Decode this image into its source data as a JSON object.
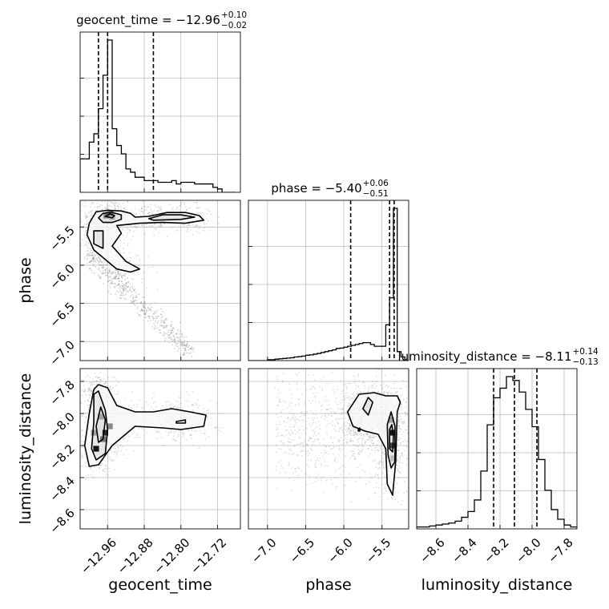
{
  "chart_data": {
    "type": "corner",
    "parameters": [
      {
        "name": "geocent_time",
        "range": [
          -13.02,
          -12.67
        ],
        "ticks": [
          -12.96,
          -12.88,
          -12.8,
          -12.72
        ],
        "tick_labels": [
          "−12.96",
          "−12.88",
          "−12.80",
          "−12.72"
        ]
      },
      {
        "name": "phase",
        "range": [
          -7.25,
          -5.15
        ],
        "ticks": [
          -7.0,
          -6.5,
          -6.0,
          -5.5
        ],
        "tick_labels": [
          "−7.0",
          "−6.5",
          "−6.0",
          "−5.5"
        ]
      },
      {
        "name": "luminosity_distance",
        "range": [
          -8.72,
          -7.72
        ],
        "ticks": [
          -8.6,
          -8.4,
          -8.2,
          -8.0,
          -7.8
        ],
        "tick_labels": [
          "−8.6",
          "−8.4",
          "−8.2",
          "−8.0",
          "−7.8"
        ]
      }
    ],
    "titles": [
      {
        "param": "geocent_time",
        "prefix": "geocent_time = −12.96",
        "plus": "+0.10",
        "minus": "−0.02"
      },
      {
        "param": "phase",
        "prefix": "phase = −5.40",
        "plus": "+0.06",
        "minus": "−0.51"
      },
      {
        "param": "luminosity_distance",
        "prefix": "luminosity_distance = −8.11",
        "plus": "+0.14",
        "minus": "−0.13"
      }
    ],
    "marginals": [
      {
        "param": "geocent_time",
        "quantiles": [
          -12.98,
          -12.96,
          -12.86
        ],
        "bins": [
          -13.02,
          -13.01,
          -13.0,
          -12.99,
          -12.98,
          -12.97,
          -12.96,
          -12.95,
          -12.94,
          -12.93,
          -12.92,
          -12.91,
          -12.9,
          -12.89,
          -12.88,
          -12.87,
          -12.86,
          -12.85,
          -12.84,
          -12.83,
          -12.82,
          -12.81,
          -12.8,
          -12.79,
          -12.78,
          -12.77,
          -12.76,
          -12.75,
          -12.74,
          -12.73,
          -12.72,
          -12.71,
          -12.7,
          -12.69
        ],
        "counts": [
          0.2,
          0.2,
          0.3,
          0.35,
          0.5,
          0.7,
          0.91,
          0.38,
          0.28,
          0.23,
          0.14,
          0.12,
          0.09,
          0.09,
          0.07,
          0.07,
          0.07,
          0.06,
          0.06,
          0.06,
          0.07,
          0.05,
          0.06,
          0.06,
          0.06,
          0.05,
          0.05,
          0.05,
          0.05,
          0.03,
          0.02,
          0.0,
          0.0,
          0.0
        ]
      },
      {
        "param": "phase",
        "quantiles": [
          -5.91,
          -5.4,
          -5.34
        ],
        "bins": [
          -7.25,
          -7.2,
          -7.15,
          -7.1,
          -7.05,
          -7.0,
          -6.95,
          -6.9,
          -6.85,
          -6.8,
          -6.75,
          -6.7,
          -6.65,
          -6.6,
          -6.55,
          -6.5,
          -6.45,
          -6.4,
          -6.35,
          -6.3,
          -6.25,
          -6.2,
          -6.15,
          -6.1,
          -6.05,
          -6.0,
          -5.95,
          -5.9,
          -5.85,
          -5.8,
          -5.75,
          -5.7,
          -5.65,
          -5.6,
          -5.55,
          -5.5,
          -5.45,
          -5.4,
          -5.35,
          -5.3,
          -5.25,
          -5.2
        ],
        "counts": [
          0,
          0,
          0,
          0,
          0,
          0.005,
          0.005,
          0.008,
          0.01,
          0.012,
          0.014,
          0.016,
          0.02,
          0.022,
          0.025,
          0.03,
          0.032,
          0.036,
          0.04,
          0.045,
          0.05,
          0.055,
          0.06,
          0.068,
          0.07,
          0.075,
          0.08,
          0.085,
          0.09,
          0.095,
          0.1,
          0.1,
          0.09,
          0.08,
          0.08,
          0.08,
          0.2,
          0.35,
          0.85,
          0.05,
          0.02,
          0.0
        ]
      },
      {
        "param": "luminosity_distance",
        "quantiles": [
          -8.24,
          -8.11,
          -7.97
        ],
        "bins": [
          -8.72,
          -8.68,
          -8.64,
          -8.6,
          -8.56,
          -8.52,
          -8.48,
          -8.44,
          -8.4,
          -8.36,
          -8.32,
          -8.28,
          -8.24,
          -8.2,
          -8.16,
          -8.12,
          -8.08,
          -8.04,
          -8.0,
          -7.96,
          -7.92,
          -7.88,
          -7.84,
          -7.8,
          -7.76,
          -7.72
        ],
        "counts": [
          0.01,
          0.01,
          0.015,
          0.02,
          0.025,
          0.03,
          0.04,
          0.06,
          0.09,
          0.15,
          0.3,
          0.54,
          0.68,
          0.73,
          0.79,
          0.77,
          0.71,
          0.62,
          0.53,
          0.36,
          0.2,
          0.1,
          0.05,
          0.02,
          0.01,
          0.0
        ]
      }
    ],
    "scatter_2d": [
      {
        "x": "geocent_time",
        "y": "phase",
        "contours": [
          [
            [
              -12.99,
              -5.35
            ],
            [
              -12.985,
              -5.3
            ],
            [
              -12.96,
              -5.28
            ],
            [
              -12.93,
              -5.29
            ],
            [
              -12.91,
              -5.32
            ],
            [
              -12.9,
              -5.37
            ],
            [
              -12.87,
              -5.36
            ],
            [
              -12.83,
              -5.31
            ],
            [
              -12.79,
              -5.31
            ],
            [
              -12.76,
              -5.35
            ],
            [
              -12.75,
              -5.41
            ],
            [
              -12.79,
              -5.45
            ],
            [
              -12.84,
              -5.44
            ],
            [
              -12.89,
              -5.45
            ],
            [
              -12.94,
              -5.48
            ],
            [
              -12.93,
              -5.58
            ],
            [
              -12.95,
              -5.75
            ],
            [
              -12.92,
              -5.95
            ],
            [
              -12.89,
              -6.05
            ],
            [
              -12.91,
              -6.09
            ],
            [
              -12.94,
              -6.05
            ],
            [
              -12.96,
              -5.95
            ],
            [
              -12.99,
              -5.8
            ],
            [
              -13.005,
              -5.6
            ],
            [
              -13.0,
              -5.45
            ],
            [
              -12.99,
              -5.35
            ]
          ],
          [
            [
              -12.98,
              -5.38
            ],
            [
              -12.97,
              -5.32
            ],
            [
              -12.95,
              -5.31
            ],
            [
              -12.93,
              -5.34
            ],
            [
              -12.93,
              -5.4
            ],
            [
              -12.95,
              -5.44
            ],
            [
              -12.97,
              -5.44
            ],
            [
              -12.98,
              -5.38
            ]
          ],
          [
            [
              -12.965,
              -5.36
            ],
            [
              -12.955,
              -5.33
            ],
            [
              -12.945,
              -5.35
            ],
            [
              -12.95,
              -5.38
            ],
            [
              -12.965,
              -5.36
            ]
          ],
          [
            [
              -12.87,
              -5.39
            ],
            [
              -12.84,
              -5.34
            ],
            [
              -12.8,
              -5.34
            ],
            [
              -12.77,
              -5.37
            ],
            [
              -12.8,
              -5.4
            ],
            [
              -12.86,
              -5.41
            ],
            [
              -12.87,
              -5.39
            ]
          ],
          [
            [
              -12.99,
              -5.55
            ],
            [
              -12.97,
              -5.55
            ],
            [
              -12.97,
              -5.78
            ],
            [
              -12.99,
              -5.72
            ],
            [
              -12.99,
              -5.55
            ]
          ]
        ],
        "hist_bins": [
          {
            "x": -12.958,
            "y": -5.34,
            "level": 1.0
          },
          {
            "x": -12.953,
            "y": -5.32,
            "level": 0.6
          },
          {
            "x": -12.963,
            "y": -5.35,
            "level": 0.5
          },
          {
            "x": -12.95,
            "y": -5.37,
            "level": 0.35
          }
        ]
      },
      {
        "x": "geocent_time",
        "y": "luminosity_distance",
        "contours": [
          [
            [
              -12.99,
              -7.85
            ],
            [
              -12.98,
              -7.82
            ],
            [
              -12.96,
              -7.84
            ],
            [
              -12.94,
              -7.95
            ],
            [
              -12.9,
              -7.99
            ],
            [
              -12.86,
              -7.99
            ],
            [
              -12.82,
              -7.97
            ],
            [
              -12.78,
              -7.99
            ],
            [
              -12.745,
              -8.01
            ],
            [
              -12.75,
              -8.08
            ],
            [
              -12.8,
              -8.1
            ],
            [
              -12.84,
              -8.09
            ],
            [
              -12.9,
              -8.08
            ],
            [
              -12.95,
              -8.2
            ],
            [
              -12.98,
              -8.32
            ],
            [
              -13.0,
              -8.33
            ],
            [
              -13.01,
              -8.2
            ],
            [
              -13.0,
              -8.0
            ],
            [
              -12.99,
              -7.85
            ]
          ],
          [
            [
              -12.99,
              -7.88
            ],
            [
              -12.98,
              -7.86
            ],
            [
              -12.965,
              -7.98
            ],
            [
              -12.96,
              -8.1
            ],
            [
              -12.965,
              -8.25
            ],
            [
              -12.985,
              -8.29
            ],
            [
              -12.995,
              -8.22
            ],
            [
              -12.99,
              -8.05
            ],
            [
              -12.99,
              -7.88
            ]
          ],
          [
            [
              -12.975,
              -7.96
            ],
            [
              -12.965,
              -8.04
            ],
            [
              -12.97,
              -8.16
            ],
            [
              -12.98,
              -8.18
            ],
            [
              -12.985,
              -8.08
            ],
            [
              -12.975,
              -7.96
            ]
          ],
          [
            [
              -12.81,
              -8.05
            ],
            [
              -12.79,
              -8.04
            ],
            [
              -12.79,
              -8.06
            ],
            [
              -12.81,
              -8.06
            ],
            [
              -12.81,
              -8.05
            ]
          ]
        ],
        "hist_bins": [
          {
            "x": -12.985,
            "y": -8.22,
            "level": 1.0
          },
          {
            "x": -12.965,
            "y": -8.12,
            "level": 0.9
          },
          {
            "x": -12.97,
            "y": -8.16,
            "level": 0.6
          },
          {
            "x": -12.955,
            "y": -8.08,
            "level": 0.5
          },
          {
            "x": -12.975,
            "y": -8.02,
            "level": 0.4
          },
          {
            "x": -12.99,
            "y": -8.12,
            "level": 0.4
          }
        ]
      },
      {
        "x": "phase",
        "y": "luminosity_distance",
        "contours": [
          [
            [
              -5.95,
              -7.99
            ],
            [
              -5.8,
              -7.88
            ],
            [
              -5.6,
              -7.87
            ],
            [
              -5.45,
              -7.89
            ],
            [
              -5.3,
              -7.89
            ],
            [
              -5.26,
              -7.93
            ],
            [
              -5.3,
              -7.99
            ],
            [
              -5.32,
              -8.3
            ],
            [
              -5.36,
              -8.51
            ],
            [
              -5.43,
              -8.44
            ],
            [
              -5.45,
              -8.22
            ],
            [
              -5.55,
              -8.13
            ],
            [
              -5.72,
              -8.11
            ],
            [
              -5.88,
              -8.08
            ],
            [
              -5.95,
              -7.99
            ]
          ],
          [
            [
              -5.75,
              -7.97
            ],
            [
              -5.68,
              -7.9
            ],
            [
              -5.62,
              -7.93
            ],
            [
              -5.68,
              -8.01
            ],
            [
              -5.75,
              -7.97
            ]
          ],
          [
            [
              -5.43,
              -8.07
            ],
            [
              -5.38,
              -7.99
            ],
            [
              -5.33,
              -8.08
            ],
            [
              -5.33,
              -8.3
            ],
            [
              -5.38,
              -8.34
            ],
            [
              -5.42,
              -8.26
            ],
            [
              -5.43,
              -8.07
            ]
          ],
          [
            [
              -5.4,
              -8.1
            ],
            [
              -5.37,
              -8.07
            ],
            [
              -5.35,
              -8.14
            ],
            [
              -5.36,
              -8.24
            ],
            [
              -5.4,
              -8.22
            ],
            [
              -5.4,
              -8.1
            ]
          ],
          [
            [
              -5.81,
              -8.1
            ],
            [
              -5.79,
              -8.09
            ],
            [
              -5.79,
              -8.11
            ],
            [
              -5.81,
              -8.11
            ],
            [
              -5.81,
              -8.1
            ]
          ]
        ],
        "hist_bins": [
          {
            "x": -5.36,
            "y": -8.12,
            "level": 1.0
          },
          {
            "x": -5.36,
            "y": -8.2,
            "level": 0.8
          },
          {
            "x": -5.38,
            "y": -8.04,
            "level": 0.4
          },
          {
            "x": -5.35,
            "y": -8.28,
            "level": 0.3
          }
        ]
      }
    ],
    "grid": true
  }
}
